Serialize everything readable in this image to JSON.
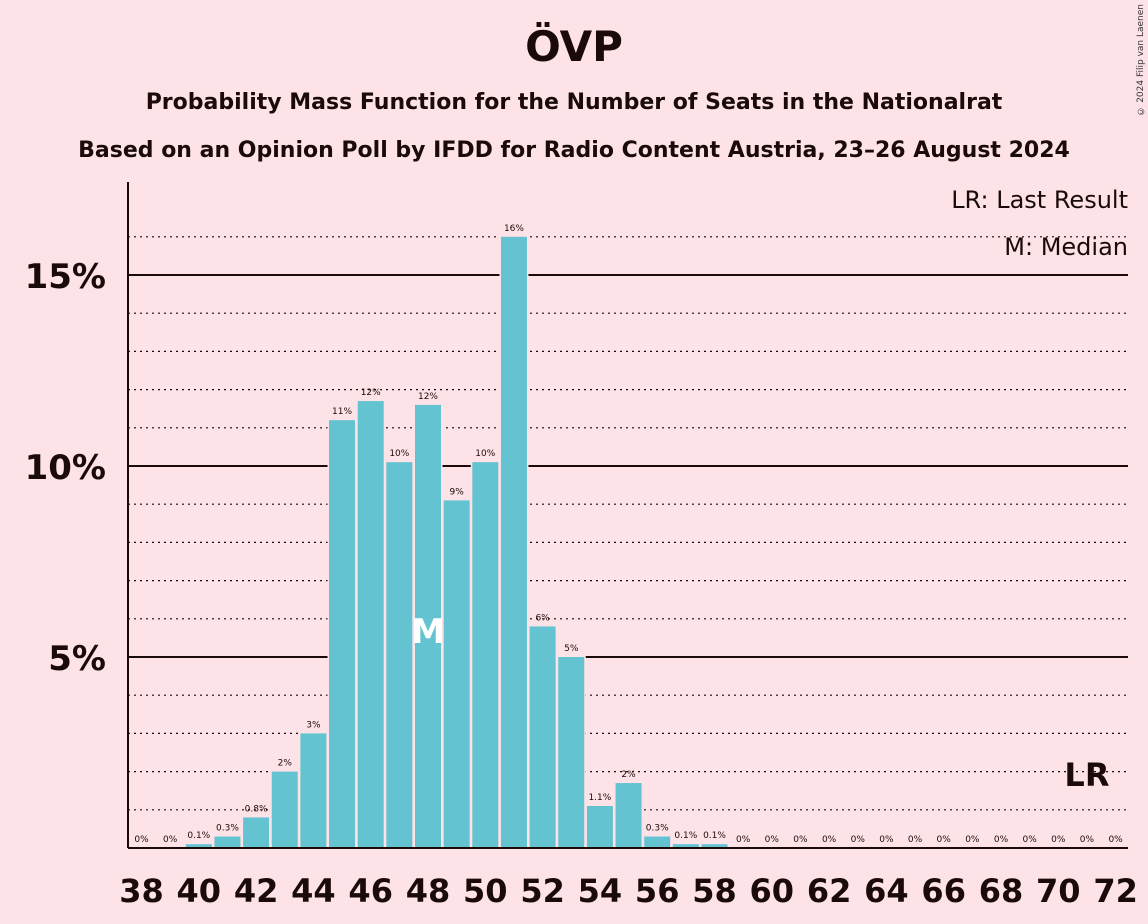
{
  "title": "ÖVP",
  "subtitle1": "Probability Mass Function for the Number of Seats in the Nationalrat",
  "subtitle2": "Based on an Opinion Poll by IFDD for Radio Content Austria, 23–26 August 2024",
  "copyright": "© 2024 Filip van Laenen",
  "legend": {
    "last_result": "LR: Last Result",
    "median": "M: Median"
  },
  "markers": {
    "median_label": "M",
    "median_seat": 48,
    "last_result_label": "LR",
    "last_result_seat": 71
  },
  "colors": {
    "bar": "#63c3d1",
    "background": "#fde3e7",
    "text": "#1a0a0a"
  },
  "chart_data": {
    "type": "bar",
    "title": "ÖVP",
    "x": [
      38,
      39,
      40,
      41,
      42,
      43,
      44,
      45,
      46,
      47,
      48,
      49,
      50,
      51,
      52,
      53,
      54,
      55,
      56,
      57,
      58,
      59,
      60,
      61,
      62,
      63,
      64,
      65,
      66,
      67,
      68,
      69,
      70,
      71,
      72
    ],
    "values": [
      0,
      0,
      0.1,
      0.3,
      0.8,
      2,
      3,
      11.2,
      11.7,
      10.1,
      11.6,
      9.1,
      10.1,
      16,
      5.8,
      5,
      1.1,
      1.7,
      0.3,
      0.1,
      0.1,
      0,
      0,
      0,
      0,
      0,
      0,
      0,
      0,
      0,
      0,
      0,
      0,
      0,
      0
    ],
    "labels": [
      "0%",
      "0%",
      "0.1%",
      "0.3%",
      "0.8%",
      "2%",
      "3%",
      "11%",
      "12%",
      "10%",
      "12%",
      "9%",
      "10%",
      "16%",
      "6%",
      "5%",
      "1.1%",
      "2%",
      "0.3%",
      "0.1%",
      "0.1%",
      "0%",
      "0%",
      "0%",
      "0%",
      "0%",
      "0%",
      "0%",
      "0%",
      "0%",
      "0%",
      "0%",
      "0%",
      "0%",
      "0%"
    ],
    "x_ticks": [
      38,
      40,
      42,
      44,
      46,
      48,
      50,
      52,
      54,
      56,
      58,
      60,
      62,
      64,
      66,
      68,
      70,
      72
    ],
    "y_ticks": [
      {
        "value": 5,
        "label": "5%"
      },
      {
        "value": 10,
        "label": "10%"
      },
      {
        "value": 15,
        "label": "15%"
      }
    ],
    "ylim": [
      0,
      17
    ],
    "grid": true
  }
}
